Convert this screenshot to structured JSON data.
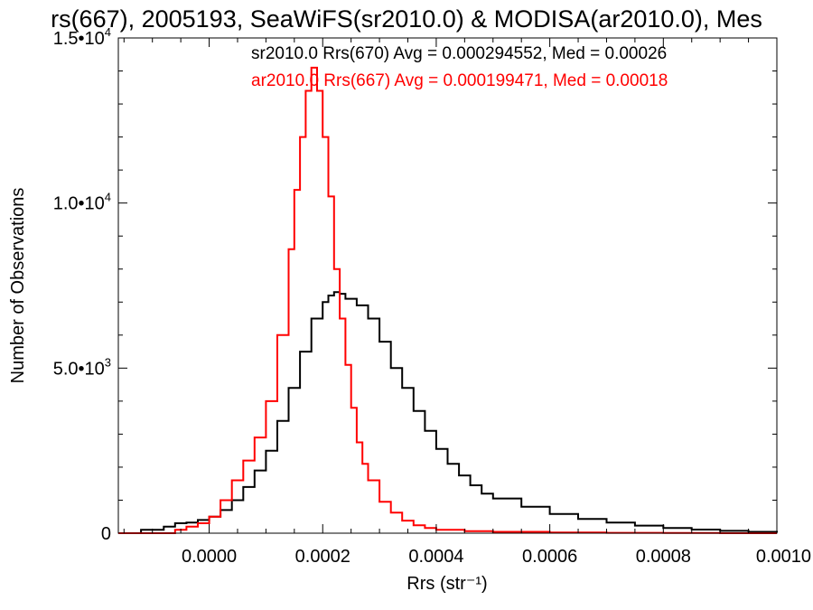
{
  "chart_data": {
    "type": "line",
    "title": "rs(667), 2005193, SeaWiFS(sr2010.0) & MODISA(ar2010.0), Mes",
    "xlabel": "Rrs (str⁻¹)",
    "ylabel": "Number of Observations",
    "xlim": [
      -0.00016,
      0.001
    ],
    "ylim": [
      0,
      15000
    ],
    "x_ticks": [
      {
        "value": 0.0,
        "label": "0.0000"
      },
      {
        "value": 0.0002,
        "label": "0.0002"
      },
      {
        "value": 0.0004,
        "label": "0.0004"
      },
      {
        "value": 0.0006,
        "label": "0.0006"
      },
      {
        "value": 0.0008,
        "label": "0.0008"
      },
      {
        "value": 0.001,
        "label": "0.0010"
      }
    ],
    "y_ticks": [
      {
        "value": 0,
        "label": "0",
        "exp": ""
      },
      {
        "value": 5000,
        "label": "5.0•10",
        "exp": "3"
      },
      {
        "value": 10000,
        "label": "1.0•10",
        "exp": "4"
      },
      {
        "value": 15000,
        "label": "1.5•10",
        "exp": "4"
      }
    ],
    "legend_placement": "top-right",
    "grid": false,
    "series": [
      {
        "name": "sr2010.0 Rrs(670)",
        "annotation": "sr2010.0 Rrs(670) Avg = 0.000294552, Med = 0.00026",
        "color": "#000000",
        "x": [
          -0.00016,
          -0.00012,
          -8e-05,
          -6e-05,
          -4e-05,
          -2e-05,
          0.0,
          2e-05,
          4e-05,
          6e-05,
          8e-05,
          0.0001,
          0.00012,
          0.00014,
          0.00016,
          0.00018,
          0.0002,
          0.00021,
          0.00022,
          0.00023,
          0.00024,
          0.00026,
          0.00028,
          0.0003,
          0.00032,
          0.00034,
          0.00036,
          0.00038,
          0.0004,
          0.00042,
          0.00044,
          0.00046,
          0.00048,
          0.0005,
          0.00055,
          0.0006,
          0.00065,
          0.0007,
          0.00075,
          0.0008,
          0.00085,
          0.0009,
          0.00095,
          0.001
        ],
        "y": [
          0,
          100,
          200,
          300,
          320,
          400,
          500,
          700,
          1000,
          1400,
          1900,
          2500,
          3400,
          4400,
          5500,
          6500,
          7000,
          7200,
          7300,
          7250,
          7100,
          6900,
          6500,
          5800,
          5000,
          4400,
          3700,
          3100,
          2550,
          2100,
          1750,
          1450,
          1200,
          1050,
          800,
          580,
          430,
          320,
          230,
          160,
          110,
          70,
          40,
          20
        ]
      },
      {
        "name": "ar2010.0 Rrs(667)",
        "annotation": "ar2010.0 Rrs(667) Avg = 0.000199471, Med = 0.00018",
        "color": "#ff0000",
        "x": [
          -0.00016,
          -0.00012,
          -0.0001,
          -8e-05,
          -6e-05,
          -4e-05,
          -2e-05,
          0.0,
          2e-05,
          4e-05,
          6e-05,
          8e-05,
          0.0001,
          0.00012,
          0.00014,
          0.00015,
          0.00016,
          0.00017,
          0.00018,
          0.00019,
          0.0002,
          0.00021,
          0.00022,
          0.00023,
          0.00024,
          0.00025,
          0.00026,
          0.00027,
          0.00028,
          0.0003,
          0.00032,
          0.00034,
          0.00036,
          0.00038,
          0.0004,
          0.00045,
          0.0005,
          0.0006,
          0.0007,
          0.0008,
          0.0009,
          0.001
        ],
        "y": [
          0,
          0,
          0,
          0,
          100,
          200,
          300,
          500,
          1000,
          1600,
          2200,
          2900,
          4000,
          6000,
          8600,
          10400,
          12000,
          13400,
          14100,
          13400,
          12000,
          10200,
          8000,
          6500,
          5100,
          3800,
          2750,
          2100,
          1600,
          950,
          620,
          380,
          240,
          160,
          100,
          60,
          40,
          20,
          10,
          5,
          0,
          0
        ]
      }
    ]
  }
}
